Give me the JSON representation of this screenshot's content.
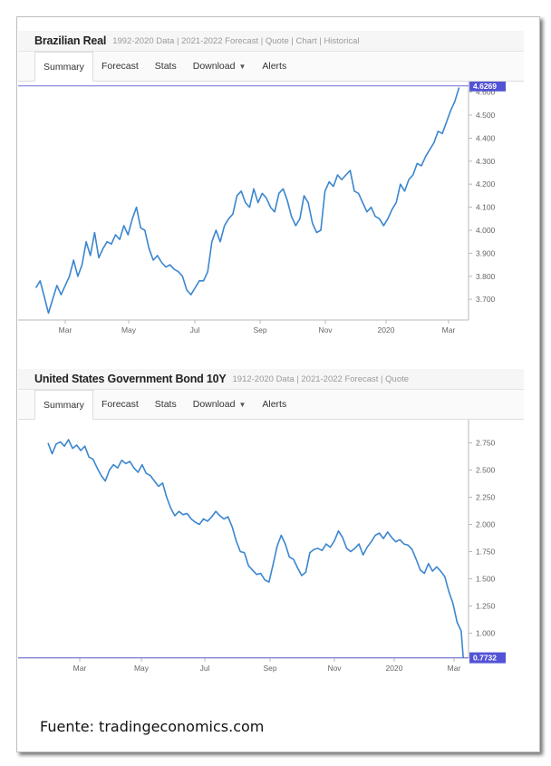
{
  "source_label": "Fuente: tradingeconomics.com",
  "chart_data": [
    {
      "type": "line",
      "title": "Brazilian Real",
      "links": "1992-2020 Data | 2021-2022 Forecast | Quote | Chart | Historical",
      "tabs": [
        "Summary",
        "Forecast",
        "Stats",
        "Download",
        "Alerts"
      ],
      "active_tab": "Summary",
      "x_ticks": [
        "Mar",
        "May",
        "Jul",
        "Sep",
        "Nov",
        "2020",
        "Mar"
      ],
      "y_ticks": [
        "4.600",
        "4.500",
        "4.400",
        "4.300",
        "4.200",
        "4.100",
        "4.000",
        "3.900",
        "3.800",
        "3.700"
      ],
      "ylim": [
        3.61,
        4.63
      ],
      "last_value_label": "4.6269",
      "last_value": 4.6269,
      "line_color": "#3b86cf",
      "x": [
        "2019-02-01",
        "2019-02-05",
        "2019-02-09",
        "2019-02-13",
        "2019-02-17",
        "2019-02-21",
        "2019-02-25",
        "2019-03-01",
        "2019-03-05",
        "2019-03-09",
        "2019-03-13",
        "2019-03-17",
        "2019-03-21",
        "2019-03-25",
        "2019-03-29",
        "2019-04-02",
        "2019-04-06",
        "2019-04-10",
        "2019-04-14",
        "2019-04-18",
        "2019-04-22",
        "2019-04-26",
        "2019-04-30",
        "2019-05-04",
        "2019-05-08",
        "2019-05-12",
        "2019-05-16",
        "2019-05-20",
        "2019-05-24",
        "2019-05-28",
        "2019-06-01",
        "2019-06-05",
        "2019-06-09",
        "2019-06-13",
        "2019-06-17",
        "2019-06-21",
        "2019-06-25",
        "2019-06-29",
        "2019-07-03",
        "2019-07-07",
        "2019-07-11",
        "2019-07-15",
        "2019-07-19",
        "2019-07-23",
        "2019-07-27",
        "2019-07-31",
        "2019-08-04",
        "2019-08-08",
        "2019-08-12",
        "2019-08-16",
        "2019-08-20",
        "2019-08-24",
        "2019-08-28",
        "2019-09-01",
        "2019-09-05",
        "2019-09-09",
        "2019-09-13",
        "2019-09-17",
        "2019-09-21",
        "2019-09-25",
        "2019-09-29",
        "2019-10-03",
        "2019-10-07",
        "2019-10-11",
        "2019-10-15",
        "2019-10-19",
        "2019-10-23",
        "2019-10-27",
        "2019-10-31",
        "2019-11-04",
        "2019-11-08",
        "2019-11-12",
        "2019-11-16",
        "2019-11-20",
        "2019-11-24",
        "2019-11-28",
        "2019-12-02",
        "2019-12-06",
        "2019-12-10",
        "2019-12-14",
        "2019-12-18",
        "2019-12-22",
        "2019-12-26",
        "2019-12-30",
        "2020-01-03",
        "2020-01-07",
        "2020-01-11",
        "2020-01-15",
        "2020-01-19",
        "2020-01-23",
        "2020-01-27",
        "2020-01-31",
        "2020-02-04",
        "2020-02-08",
        "2020-02-12",
        "2020-02-16",
        "2020-02-20",
        "2020-02-24",
        "2020-02-28",
        "2020-03-03",
        "2020-03-07",
        "2020-03-11"
      ],
      "values": [
        3.75,
        3.78,
        3.71,
        3.64,
        3.7,
        3.76,
        3.72,
        3.76,
        3.8,
        3.87,
        3.8,
        3.85,
        3.95,
        3.89,
        3.99,
        3.88,
        3.92,
        3.95,
        3.94,
        3.98,
        3.96,
        4.02,
        3.98,
        4.05,
        4.1,
        4.01,
        4.0,
        3.92,
        3.87,
        3.89,
        3.86,
        3.84,
        3.85,
        3.83,
        3.82,
        3.8,
        3.74,
        3.72,
        3.75,
        3.78,
        3.78,
        3.82,
        3.95,
        4.0,
        3.95,
        4.02,
        4.05,
        4.07,
        4.15,
        4.17,
        4.12,
        4.1,
        4.18,
        4.12,
        4.16,
        4.14,
        4.1,
        4.08,
        4.16,
        4.18,
        4.13,
        4.06,
        4.02,
        4.05,
        4.15,
        4.12,
        4.03,
        3.99,
        4.0,
        4.17,
        4.21,
        4.19,
        4.24,
        4.22,
        4.24,
        4.26,
        4.17,
        4.16,
        4.12,
        4.08,
        4.1,
        4.06,
        4.05,
        4.02,
        4.05,
        4.09,
        4.12,
        4.2,
        4.17,
        4.22,
        4.24,
        4.29,
        4.28,
        4.32,
        4.35,
        4.38,
        4.43,
        4.42,
        4.47,
        4.52,
        4.56,
        4.62
      ]
    },
    {
      "type": "line",
      "title": "United States Government Bond 10Y",
      "links": "1912-2020 Data | 2021-2022 Forecast | Quote",
      "tabs": [
        "Summary",
        "Forecast",
        "Stats",
        "Download",
        "Alerts"
      ],
      "active_tab": "Summary",
      "x_ticks": [
        "Mar",
        "May",
        "Jul",
        "Sep",
        "Nov",
        "2020",
        "Mar"
      ],
      "y_ticks": [
        "2.750",
        "2.500",
        "2.250",
        "2.000",
        "1.750",
        "1.500",
        "1.250",
        "1.000"
      ],
      "ylim": [
        0.77,
        2.93
      ],
      "last_value_label": "0.7732",
      "last_value": 0.7732,
      "line_color": "#3b86cf",
      "x": [
        "2019-01-29",
        "2019-02-02",
        "2019-02-06",
        "2019-02-10",
        "2019-02-14",
        "2019-02-18",
        "2019-02-22",
        "2019-02-26",
        "2019-03-02",
        "2019-03-06",
        "2019-03-10",
        "2019-03-14",
        "2019-03-18",
        "2019-03-22",
        "2019-03-26",
        "2019-03-30",
        "2019-04-03",
        "2019-04-07",
        "2019-04-11",
        "2019-04-15",
        "2019-04-19",
        "2019-04-23",
        "2019-04-27",
        "2019-05-01",
        "2019-05-05",
        "2019-05-09",
        "2019-05-13",
        "2019-05-17",
        "2019-05-21",
        "2019-05-25",
        "2019-05-29",
        "2019-06-02",
        "2019-06-06",
        "2019-06-10",
        "2019-06-14",
        "2019-06-18",
        "2019-06-22",
        "2019-06-26",
        "2019-06-30",
        "2019-07-04",
        "2019-07-08",
        "2019-07-12",
        "2019-07-16",
        "2019-07-20",
        "2019-07-24",
        "2019-07-28",
        "2019-08-01",
        "2019-08-05",
        "2019-08-09",
        "2019-08-13",
        "2019-08-17",
        "2019-08-21",
        "2019-08-25",
        "2019-08-29",
        "2019-09-02",
        "2019-09-06",
        "2019-09-10",
        "2019-09-14",
        "2019-09-18",
        "2019-09-22",
        "2019-09-26",
        "2019-09-30",
        "2019-10-04",
        "2019-10-08",
        "2019-10-12",
        "2019-10-16",
        "2019-10-20",
        "2019-10-24",
        "2019-10-28",
        "2019-11-01",
        "2019-11-05",
        "2019-11-09",
        "2019-11-13",
        "2019-11-17",
        "2019-11-21",
        "2019-11-25",
        "2019-11-29",
        "2019-12-03",
        "2019-12-07",
        "2019-12-11",
        "2019-12-15",
        "2019-12-19",
        "2019-12-23",
        "2019-12-27",
        "2019-12-31",
        "2020-01-04",
        "2020-01-08",
        "2020-01-12",
        "2020-01-16",
        "2020-01-20",
        "2020-01-24",
        "2020-01-28",
        "2020-02-01",
        "2020-02-05",
        "2020-02-09",
        "2020-02-13",
        "2020-02-17",
        "2020-02-21",
        "2020-02-25",
        "2020-02-29",
        "2020-03-04",
        "2020-03-08",
        "2020-03-10"
      ],
      "values": [
        2.75,
        2.65,
        2.74,
        2.76,
        2.72,
        2.78,
        2.7,
        2.73,
        2.68,
        2.72,
        2.62,
        2.6,
        2.52,
        2.45,
        2.4,
        2.5,
        2.55,
        2.52,
        2.59,
        2.56,
        2.58,
        2.52,
        2.48,
        2.55,
        2.47,
        2.45,
        2.4,
        2.35,
        2.38,
        2.25,
        2.15,
        2.08,
        2.12,
        2.09,
        2.1,
        2.05,
        2.02,
        2.0,
        2.05,
        2.03,
        2.07,
        2.12,
        2.08,
        2.05,
        2.07,
        1.98,
        1.85,
        1.75,
        1.74,
        1.62,
        1.58,
        1.54,
        1.55,
        1.49,
        1.47,
        1.63,
        1.8,
        1.9,
        1.82,
        1.7,
        1.68,
        1.6,
        1.53,
        1.56,
        1.74,
        1.77,
        1.78,
        1.76,
        1.82,
        1.79,
        1.85,
        1.94,
        1.88,
        1.78,
        1.75,
        1.78,
        1.82,
        1.72,
        1.79,
        1.84,
        1.9,
        1.92,
        1.87,
        1.93,
        1.88,
        1.84,
        1.86,
        1.82,
        1.81,
        1.77,
        1.68,
        1.58,
        1.55,
        1.64,
        1.57,
        1.61,
        1.57,
        1.52,
        1.38,
        1.27,
        1.1,
        1.02,
        0.77
      ]
    }
  ]
}
